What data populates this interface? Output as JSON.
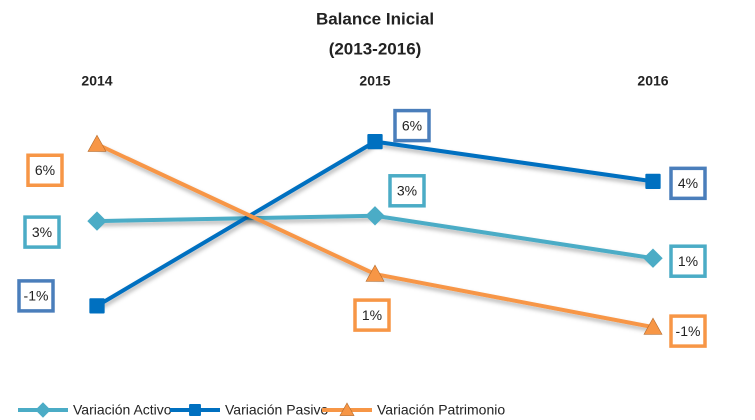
{
  "chart_data": {
    "type": "line",
    "title": "Balance Inicial",
    "subtitle": "(2013-2016)",
    "categories": [
      "2014",
      "2015",
      "2016"
    ],
    "ylim": [
      -2,
      7
    ],
    "legend": "bottom",
    "series": [
      {
        "name": "Variación Activo",
        "color": "#4bacc6",
        "marker": "diamond",
        "values": [
          2.6,
          2.8,
          1.2
        ],
        "value_labels": [
          "3%",
          "3%",
          "1%"
        ]
      },
      {
        "name": "Variación Pasivo",
        "color": "#0070c0",
        "marker": "square",
        "values": [
          -0.6,
          5.6,
          4.1
        ],
        "value_labels": [
          "-1%",
          "6%",
          "4%"
        ]
      },
      {
        "name": "Variación Patrimonio",
        "color": "#f79646",
        "marker": "triangle",
        "values": [
          5.5,
          0.6,
          -1.4
        ],
        "value_labels": [
          "6%",
          "1%",
          "-1%"
        ]
      }
    ]
  }
}
